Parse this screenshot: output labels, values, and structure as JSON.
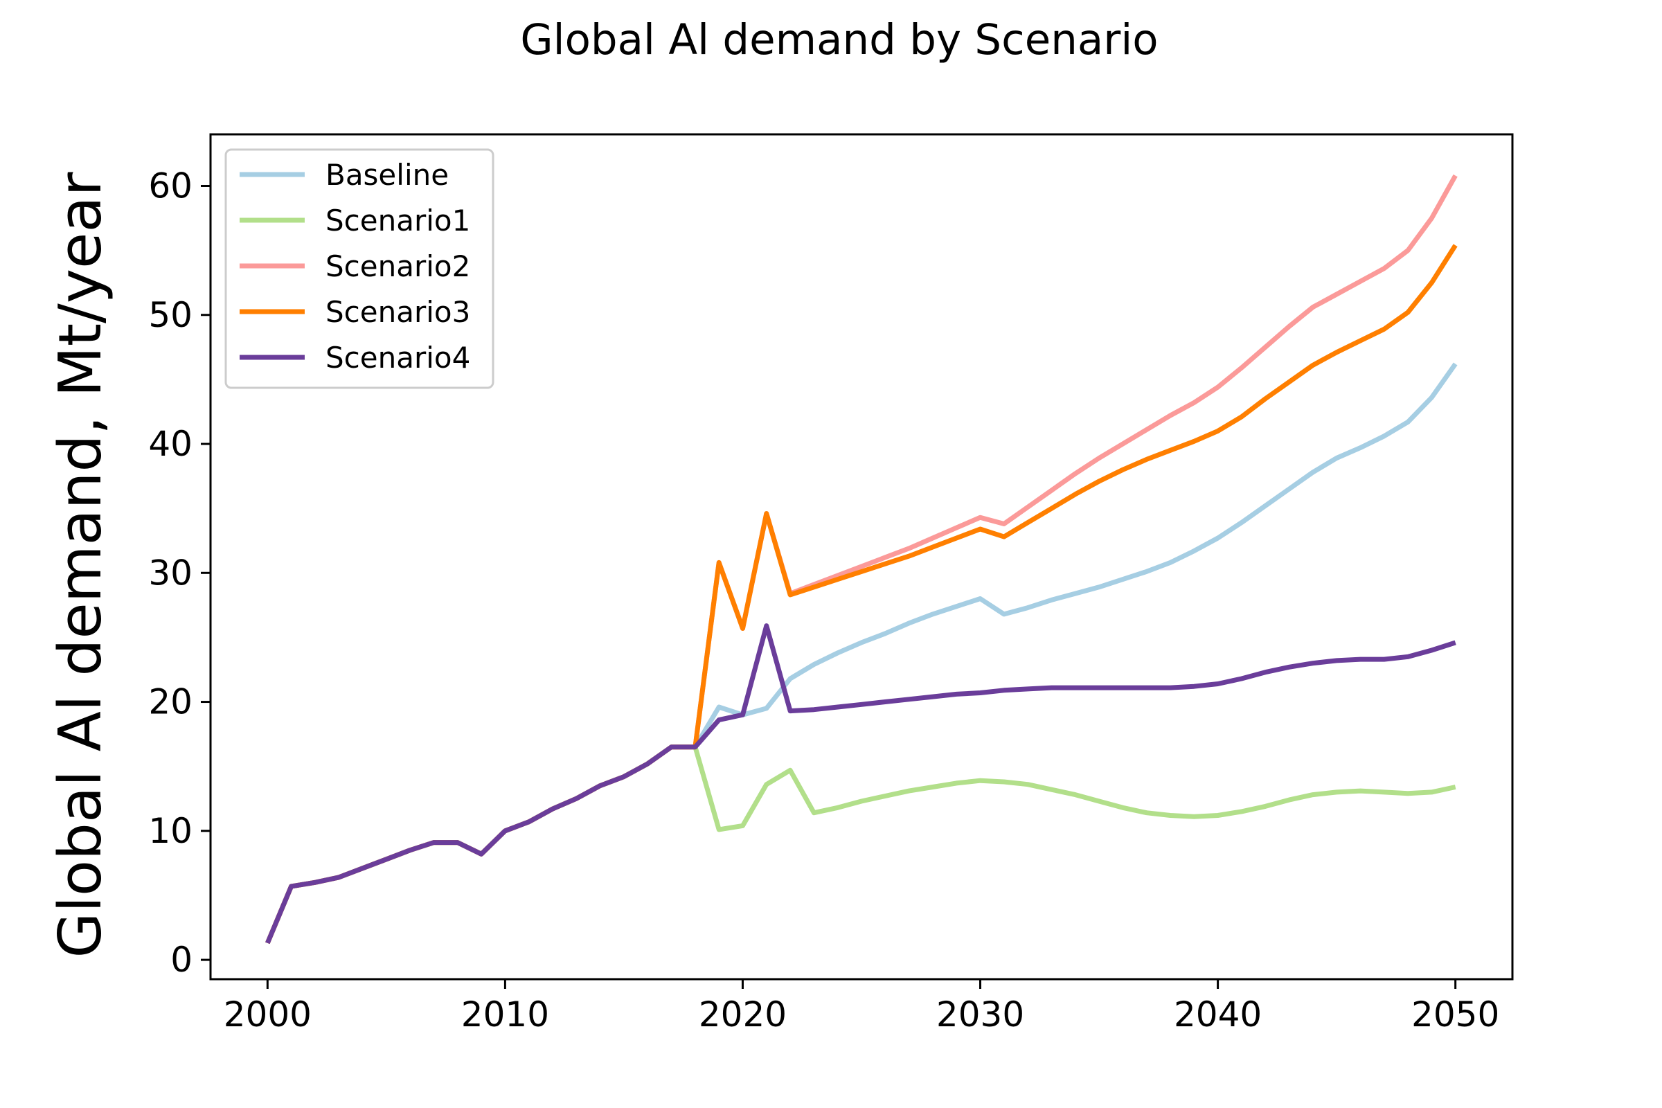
{
  "chart_data": {
    "type": "line",
    "title": "Global Al demand by Scenario",
    "xlabel": "",
    "ylabel": "Global Al demand, Mt/year",
    "xlim": [
      1997.6,
      2052.4
    ],
    "ylim": [
      -1.5,
      64
    ],
    "xticks": [
      2000,
      2010,
      2020,
      2030,
      2040,
      2050
    ],
    "yticks": [
      0,
      10,
      20,
      30,
      40,
      50,
      60
    ],
    "grid": false,
    "legend_position": "top-left",
    "x": [
      2000,
      2001,
      2002,
      2003,
      2004,
      2005,
      2006,
      2007,
      2008,
      2009,
      2010,
      2011,
      2012,
      2013,
      2014,
      2015,
      2016,
      2017,
      2018,
      2019,
      2020,
      2021,
      2022,
      2023,
      2024,
      2025,
      2026,
      2027,
      2028,
      2029,
      2030,
      2031,
      2032,
      2033,
      2034,
      2035,
      2036,
      2037,
      2038,
      2039,
      2040,
      2041,
      2042,
      2043,
      2044,
      2045,
      2046,
      2047,
      2048,
      2049,
      2050
    ],
    "series": [
      {
        "name": "Baseline",
        "color": "#a6cee3",
        "values": [
          1.3,
          5.7,
          6.0,
          6.4,
          7.1,
          7.8,
          8.5,
          9.1,
          9.1,
          8.2,
          10.0,
          10.7,
          11.7,
          12.5,
          13.5,
          14.2,
          15.2,
          16.5,
          16.5,
          19.6,
          19.0,
          19.5,
          21.8,
          22.9,
          23.8,
          24.6,
          25.3,
          26.1,
          26.8,
          27.4,
          28.0,
          26.8,
          27.3,
          27.9,
          28.4,
          28.9,
          29.5,
          30.1,
          30.8,
          31.7,
          32.7,
          33.9,
          35.2,
          36.5,
          37.8,
          38.9,
          39.7,
          40.6,
          41.7,
          43.6,
          46.2
        ]
      },
      {
        "name": "Scenario1",
        "color": "#b2df8a",
        "values": [
          1.3,
          5.7,
          6.0,
          6.4,
          7.1,
          7.8,
          8.5,
          9.1,
          9.1,
          8.2,
          10.0,
          10.7,
          11.7,
          12.5,
          13.5,
          14.2,
          15.2,
          16.5,
          16.5,
          10.1,
          10.4,
          13.6,
          14.7,
          11.4,
          11.8,
          12.3,
          12.7,
          13.1,
          13.4,
          13.7,
          13.9,
          13.8,
          13.6,
          13.2,
          12.8,
          12.3,
          11.8,
          11.4,
          11.2,
          11.1,
          11.2,
          11.5,
          11.9,
          12.4,
          12.8,
          13.0,
          13.1,
          13.0,
          12.9,
          13.0,
          13.4
        ]
      },
      {
        "name": "Scenario2",
        "color": "#fb9a99",
        "values": [
          1.3,
          5.7,
          6.0,
          6.4,
          7.1,
          7.8,
          8.5,
          9.1,
          9.1,
          8.2,
          10.0,
          10.7,
          11.7,
          12.5,
          13.5,
          14.2,
          15.2,
          16.5,
          16.5,
          30.8,
          25.7,
          34.6,
          28.4,
          29.1,
          29.8,
          30.5,
          31.2,
          31.9,
          32.7,
          33.5,
          34.3,
          33.8,
          35.1,
          36.4,
          37.7,
          38.9,
          40.0,
          41.1,
          42.2,
          43.2,
          44.4,
          45.9,
          47.5,
          49.1,
          50.6,
          51.6,
          52.6,
          53.6,
          55.0,
          57.5,
          60.8
        ]
      },
      {
        "name": "Scenario3",
        "color": "#ff7f00",
        "values": [
          1.3,
          5.7,
          6.0,
          6.4,
          7.1,
          7.8,
          8.5,
          9.1,
          9.1,
          8.2,
          10.0,
          10.7,
          11.7,
          12.5,
          13.5,
          14.2,
          15.2,
          16.5,
          16.5,
          30.8,
          25.7,
          34.6,
          28.3,
          28.9,
          29.5,
          30.1,
          30.7,
          31.3,
          32.0,
          32.7,
          33.4,
          32.8,
          33.9,
          35.0,
          36.1,
          37.1,
          38.0,
          38.8,
          39.5,
          40.2,
          41.0,
          42.1,
          43.5,
          44.8,
          46.1,
          47.1,
          48.0,
          48.9,
          50.2,
          52.5,
          55.4
        ]
      },
      {
        "name": "Scenario4",
        "color": "#6a3d9a",
        "values": [
          1.3,
          5.7,
          6.0,
          6.4,
          7.1,
          7.8,
          8.5,
          9.1,
          9.1,
          8.2,
          10.0,
          10.7,
          11.7,
          12.5,
          13.5,
          14.2,
          15.2,
          16.5,
          16.5,
          18.6,
          19.0,
          25.9,
          19.3,
          19.4,
          19.6,
          19.8,
          20.0,
          20.2,
          20.4,
          20.6,
          20.7,
          20.9,
          21.0,
          21.1,
          21.1,
          21.1,
          21.1,
          21.1,
          21.1,
          21.2,
          21.4,
          21.8,
          22.3,
          22.7,
          23.0,
          23.2,
          23.3,
          23.3,
          23.5,
          24.0,
          24.6
        ]
      }
    ]
  }
}
